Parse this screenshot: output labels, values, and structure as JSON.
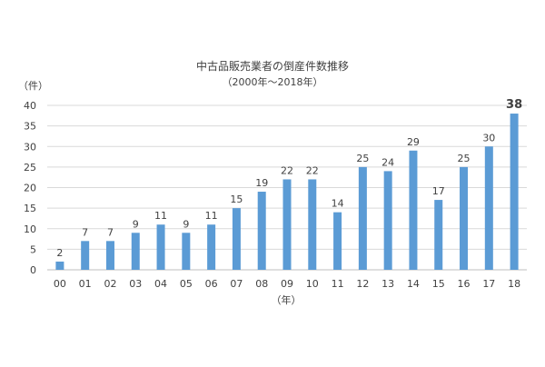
{
  "chart_data": {
    "type": "bar",
    "title": "中古品販売業者の倒産件数推移",
    "subtitle": "（2000年～2018年）",
    "ylabel": "（件）",
    "xlabel": "（年）",
    "categories": [
      "00",
      "01",
      "02",
      "03",
      "04",
      "05",
      "06",
      "07",
      "08",
      "09",
      "10",
      "11",
      "12",
      "13",
      "14",
      "15",
      "16",
      "17",
      "18"
    ],
    "values": [
      2,
      7,
      7,
      9,
      11,
      9,
      11,
      15,
      19,
      22,
      22,
      14,
      25,
      24,
      29,
      17,
      25,
      30,
      38
    ],
    "ylim": [
      0,
      40
    ],
    "yticks": [
      0,
      5,
      10,
      15,
      20,
      25,
      30,
      35,
      40
    ],
    "grid": true,
    "legend": "none",
    "bar_color": "#5b9bd5",
    "highlight_last_label": true
  }
}
